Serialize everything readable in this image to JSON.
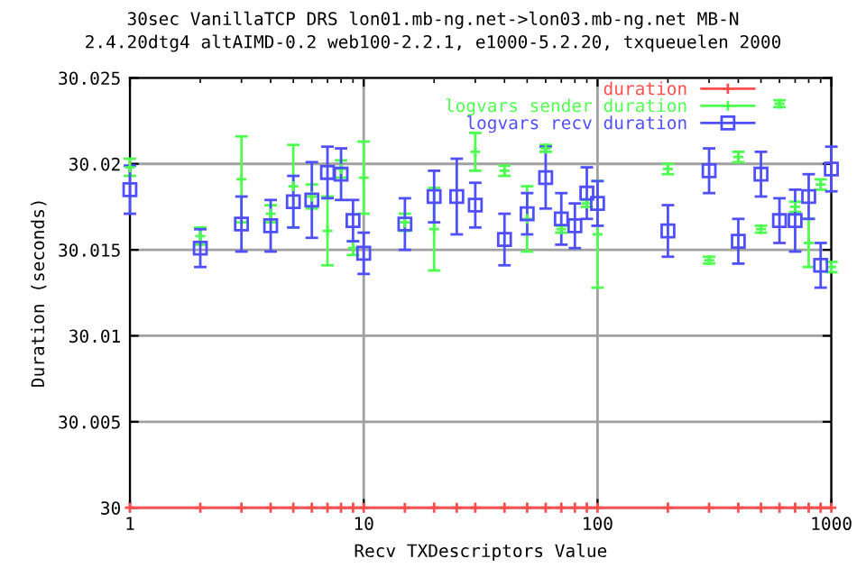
{
  "chart_data": {
    "type": "scatter",
    "title": "30sec VanillaTCP DRS lon01.mb-ng.net->lon03.mb-ng.net MB-N",
    "subtitle": "2.4.20dtg4 altAIMD-0.2 web100-2.2.1, e1000-5.2.20, txqueuelen 2000",
    "xlabel": "Recv TXDescriptors Value",
    "ylabel": "Duration (seconds)",
    "x": [
      1,
      2,
      3,
      4,
      5,
      6,
      7,
      8,
      9,
      10,
      15,
      20,
      25,
      30,
      40,
      50,
      60,
      70,
      80,
      90,
      100,
      200,
      300,
      400,
      500,
      600,
      700,
      800,
      900,
      1000
    ],
    "log": "x",
    "xlim": [
      1,
      1000
    ],
    "xticks": [
      1,
      10,
      100,
      1000
    ],
    "ylim": [
      30,
      30.025
    ],
    "yticks": [
      30,
      30.005,
      30.01,
      30.015,
      30.02,
      30.025
    ],
    "grid": true,
    "legend": "top right",
    "series": [
      {
        "name": "duration",
        "color": "#ff4f4f",
        "marker": "cross",
        "line_style": "solid",
        "values": [
          30,
          30,
          30,
          30,
          30,
          30,
          30,
          30,
          30,
          30,
          30,
          30,
          30,
          30,
          30,
          30,
          30,
          30,
          30,
          30,
          30,
          30,
          30,
          30,
          30,
          30,
          30,
          30,
          30,
          30
        ]
      },
      {
        "name": "logvars sender duration",
        "color": "#4fff4f",
        "marker": "cross",
        "values": [
          30.0198,
          30.0158,
          30.0191,
          30.0171,
          30.0187,
          30.0181,
          30.0161,
          30.0197,
          30.0151,
          30.0192,
          30.0166,
          30.0162,
          null,
          30.0207,
          30.0196,
          30.0168,
          30.0209,
          30.0162,
          null,
          30.0177,
          30.0159,
          30.0197,
          30.0144,
          30.0204,
          30.0162,
          30.0235,
          30.0175,
          30.0154,
          30.0188,
          30.014
        ],
        "errors": [
          0.0005,
          0.0005,
          0.0025,
          0.0005,
          0.0024,
          0.0007,
          0.002,
          0.0005,
          0.0004,
          0.0021,
          0.0005,
          0.0024,
          null,
          0.0011,
          0.0003,
          0.0019,
          0.0002,
          0.0002,
          null,
          0.0002,
          0.0031,
          0.0003,
          0.0002,
          0.0003,
          0.0002,
          0.0002,
          0.0003,
          0.0014,
          0.0003,
          0.0003
        ]
      },
      {
        "name": "logvars recv duration",
        "color": "#4f4fff",
        "marker": "square",
        "values": [
          30.0185,
          30.0151,
          30.0165,
          30.0164,
          30.0178,
          30.0179,
          30.0195,
          30.0194,
          30.0167,
          30.0148,
          30.0165,
          30.0181,
          30.0181,
          30.0176,
          30.0156,
          30.0171,
          30.0192,
          30.0168,
          30.0164,
          30.0183,
          30.0177,
          30.0161,
          30.0196,
          30.0155,
          30.0194,
          30.0167,
          30.0167,
          30.0181,
          30.0141,
          30.0197
        ],
        "errors": [
          0.0014,
          0.0011,
          0.0016,
          0.0015,
          0.0015,
          0.0022,
          0.0015,
          0.0015,
          0.0012,
          0.0012,
          0.0015,
          0.0015,
          0.0022,
          0.0013,
          0.0015,
          0.0012,
          0.0018,
          0.0015,
          0.0013,
          0.0015,
          0.0013,
          0.0015,
          0.0013,
          0.0013,
          0.0013,
          0.0013,
          0.0018,
          0.0013,
          0.0013,
          0.0013
        ]
      }
    ]
  }
}
